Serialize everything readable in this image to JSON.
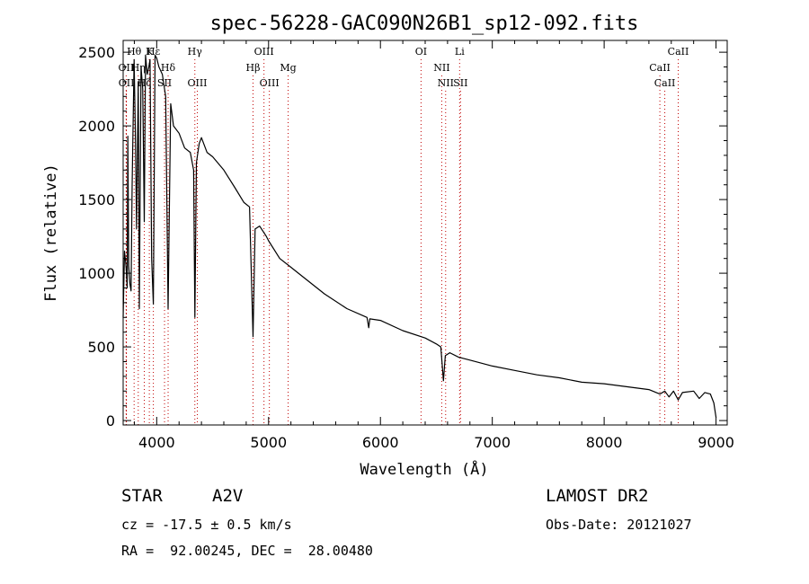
{
  "chart_data": {
    "type": "line",
    "title": "spec-56228-GAC090N26B1_sp12-092.fits",
    "xlabel": "Wavelength (Å)",
    "ylabel": "Flux (relative)",
    "xlim": [
      3700,
      9100
    ],
    "ylim": [
      -30,
      2580
    ],
    "x_ticks": [
      4000,
      5000,
      6000,
      7000,
      8000,
      9000
    ],
    "y_ticks": [
      0,
      500,
      1000,
      1500,
      2000,
      2500
    ],
    "grid": false,
    "series": [
      {
        "color": "#000000",
        "x": [
          3700,
          3712,
          3722,
          3730,
          3736,
          3742,
          3750,
          3760,
          3771,
          3780,
          3798,
          3810,
          3820,
          3835,
          3845,
          3860,
          3875,
          3889,
          3900,
          3915,
          3930,
          3940,
          3955,
          3970,
          3985,
          4000,
          4020,
          4050,
          4080,
          4102,
          4125,
          4150,
          4200,
          4250,
          4300,
          4330,
          4341,
          4355,
          4380,
          4400,
          4450,
          4500,
          4600,
          4700,
          4780,
          4830,
          4861,
          4880,
          4920,
          4980,
          5000,
          5100,
          5200,
          5300,
          5500,
          5700,
          5880,
          5895,
          5905,
          6000,
          6200,
          6400,
          6500,
          6540,
          6563,
          6580,
          6620,
          6700,
          6800,
          7000,
          7200,
          7400,
          7600,
          7800,
          8000,
          8200,
          8400,
          8498,
          8542,
          8580,
          8620,
          8662,
          8700,
          8800,
          8850,
          8900,
          8950,
          8980,
          9000
        ],
        "y": [
          700,
          1150,
          1080,
          1000,
          900,
          1930,
          1050,
          930,
          880,
          1600,
          2450,
          1900,
          1300,
          2300,
          760,
          2400,
          2250,
          1350,
          2480,
          2350,
          2400,
          2450,
          1100,
          790,
          2480,
          2460,
          2400,
          2350,
          2200,
          760,
          2150,
          2000,
          1950,
          1850,
          1820,
          1700,
          700,
          1750,
          1880,
          1920,
          1820,
          1790,
          1700,
          1580,
          1480,
          1450,
          570,
          1300,
          1320,
          1250,
          1220,
          1100,
          1040,
          980,
          860,
          760,
          700,
          630,
          690,
          680,
          610,
          560,
          520,
          500,
          270,
          440,
          460,
          430,
          410,
          370,
          340,
          310,
          290,
          260,
          250,
          230,
          210,
          180,
          200,
          160,
          200,
          140,
          190,
          200,
          150,
          190,
          180,
          120,
          20
        ]
      }
    ],
    "annotations": [
      {
        "label": "Hε",
        "x": 3970,
        "row": 1,
        "color": "#c00000"
      },
      {
        "label": "Hδ",
        "x": 4102,
        "row": 2,
        "color": "#c00000"
      },
      {
        "label": "Hγ",
        "x": 4341,
        "row": 1,
        "color": "#c00000"
      },
      {
        "label": "Hβ",
        "x": 4861,
        "row": 2,
        "color": "#c00000"
      },
      {
        "label": "Mg",
        "x": 5175,
        "row": 2,
        "color": "#c00000"
      },
      {
        "label": "OI",
        "x": 6363,
        "row": 1,
        "color": "#c00000"
      },
      {
        "label": "Li",
        "x": 6708,
        "row": 1,
        "color": "#c00000"
      },
      {
        "label": "NII",
        "x": 6548,
        "row": 2,
        "color": "#c00000"
      },
      {
        "label": "NII",
        "x": 6583,
        "row": 3,
        "color": "#c00000"
      },
      {
        "label": "SII",
        "x": 6716,
        "row": 3,
        "color": "#c00000"
      },
      {
        "label": "SII",
        "x": 4070,
        "row": 3,
        "color": "#c00000"
      },
      {
        "label": "OIII",
        "x": 4363,
        "row": 3,
        "color": "#c00000"
      },
      {
        "label": "OIII",
        "x": 4959,
        "row": 1,
        "color": "#c00000"
      },
      {
        "label": "OIII",
        "x": 5007,
        "row": 3,
        "color": "#c00000"
      },
      {
        "label": "CaII",
        "x": 8662,
        "row": 1,
        "color": "#c00000"
      },
      {
        "label": "CaII",
        "x": 8498,
        "row": 2,
        "color": "#c00000"
      },
      {
        "label": "CaII",
        "x": 8542,
        "row": 3,
        "color": "#c00000"
      },
      {
        "label": "Hθ",
        "x": 3798,
        "row": 1,
        "color": "#c00000"
      },
      {
        "label": "K",
        "x": 3934,
        "row": 1,
        "color": "#c00000"
      },
      {
        "label": "OII",
        "x": 3727,
        "row": 2,
        "color": "#c00000"
      },
      {
        "label": "OII",
        "x": 3729,
        "row": 3,
        "color": "#c00000"
      },
      {
        "label": "Hη",
        "x": 3835,
        "row": 2,
        "color": "#c00000"
      },
      {
        "label": "Hζ",
        "x": 3889,
        "row": 3,
        "color": "#c00000"
      }
    ]
  },
  "info": {
    "obj_class": "STAR",
    "subclass": "A2V",
    "survey": "LAMOST DR2",
    "cz": "cz = -17.5 ± 0.5 km/s",
    "obs_date": "Obs-Date: 20121027",
    "radec": "RA =  92.00245, DEC =  28.00480"
  }
}
